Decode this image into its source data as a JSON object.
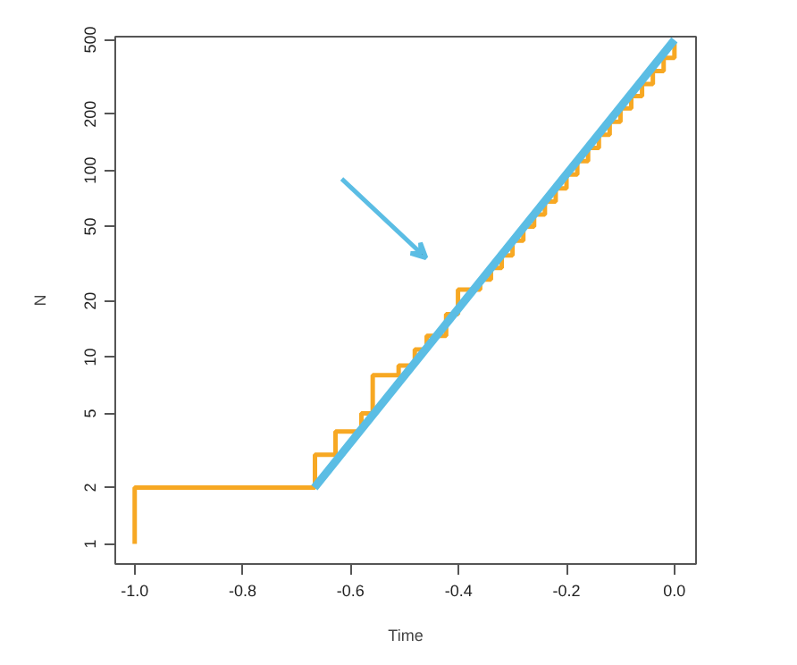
{
  "chart_data": {
    "type": "line",
    "xlabel": "Time",
    "ylabel": "N",
    "log": "y",
    "grid": false,
    "xlim": [
      -1.036,
      0.04
    ],
    "ylim": [
      0.78,
      520
    ],
    "xticks": [
      {
        "value": -1.0,
        "label": "-1.0"
      },
      {
        "value": -0.8,
        "label": "-0.8"
      },
      {
        "value": -0.6,
        "label": "-0.6"
      },
      {
        "value": -0.4,
        "label": "-0.4"
      },
      {
        "value": -0.2,
        "label": "-0.2"
      },
      {
        "value": 0.0,
        "label": "0.0"
      }
    ],
    "yticks": [
      1,
      2,
      5,
      10,
      20,
      50,
      100,
      200,
      500
    ],
    "series": [
      {
        "type": "step",
        "color": "#f7a823",
        "x": [
          -1.0,
          -1.0,
          -0.666,
          -0.628,
          -0.58,
          -0.559,
          -0.511,
          -0.481,
          -0.459,
          -0.423,
          -0.401,
          -0.387,
          -0.36,
          -0.34,
          -0.32,
          -0.3,
          -0.28,
          -0.26,
          -0.24,
          -0.22,
          -0.2,
          -0.18,
          -0.16,
          -0.14,
          -0.12,
          -0.1,
          -0.08,
          -0.06,
          -0.04,
          -0.02,
          0.0
        ],
        "values": [
          1,
          2,
          3,
          4,
          5,
          8,
          9,
          11,
          13,
          17,
          23,
          23,
          26,
          30,
          35,
          42,
          50,
          58,
          68,
          80,
          95,
          112,
          132,
          155,
          182,
          215,
          250,
          290,
          340,
          400,
          480
        ]
      },
      {
        "color": "#5bbde4",
        "x": [
          -0.667,
          0.0
        ],
        "values": [
          2,
          500
        ]
      }
    ]
  }
}
